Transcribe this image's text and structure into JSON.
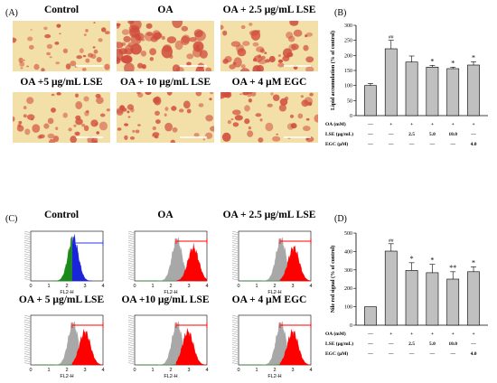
{
  "panels": {
    "A": {
      "label": "(A)",
      "images": [
        {
          "title": "Control"
        },
        {
          "title": "OA"
        },
        {
          "title": "OA + 2.5 μg/mL LSE"
        },
        {
          "title": "OA +5 μg/mL LSE"
        },
        {
          "title": "OA + 10 μg/mL LSE"
        },
        {
          "title": "OA + 4 μM EGC"
        }
      ]
    },
    "C": {
      "label": "(C)",
      "histograms": [
        {
          "title": "Control",
          "xlabel": "FL2-H",
          "fill": "green-blue"
        },
        {
          "title": "OA",
          "xlabel": "FL2-H",
          "fill": "red"
        },
        {
          "title": "OA + 2.5 μg/mL LSE",
          "xlabel": "FL2-H",
          "fill": "red"
        },
        {
          "title": "OA + 5 μg/mL LSE",
          "xlabel": "FL2-H",
          "fill": "red"
        },
        {
          "title": "OA +10 μg/mL LSE",
          "xlabel": "FL2-H",
          "fill": "red"
        },
        {
          "title": "OA + 4 μM EGC",
          "xlabel": "FL2-H",
          "fill": "red"
        }
      ],
      "x_ticks": [
        "0",
        "1",
        "2",
        "3",
        "4"
      ]
    }
  },
  "chart_data": [
    {
      "panel_label": "(B)",
      "type": "bar",
      "ylabel": "Lipid accumulation (% of control)",
      "ylim": [
        0,
        300
      ],
      "yticks": [
        0,
        50,
        100,
        150,
        200,
        250,
        300
      ],
      "values": [
        100,
        222,
        178,
        161,
        156,
        168
      ],
      "errors": [
        7,
        28,
        20,
        6,
        5,
        11
      ],
      "marks": [
        "",
        "##",
        "",
        "*",
        "*",
        "*"
      ],
      "rows": [
        {
          "label": "OA (mM)",
          "cells": [
            "—",
            "+",
            "+",
            "+",
            "+",
            "+"
          ]
        },
        {
          "label": "LSE (μg/mL)",
          "cells": [
            "—",
            "—",
            "2.5",
            "5.0",
            "10.0",
            "—"
          ]
        },
        {
          "label": "EGC (μM)",
          "cells": [
            "—",
            "—",
            "—",
            "—",
            "—",
            "4.0"
          ]
        }
      ],
      "bar_color": "#c0c0c0"
    },
    {
      "panel_label": "(D)",
      "type": "bar",
      "ylabel": "Nile red signal (% of control)",
      "ylim": [
        0,
        500
      ],
      "yticks": [
        0,
        100,
        200,
        300,
        400,
        500
      ],
      "values": [
        100,
        402,
        297,
        285,
        250,
        290
      ],
      "errors": [
        0,
        40,
        42,
        45,
        40,
        27
      ],
      "marks": [
        "",
        "##",
        "*",
        "*",
        "**",
        "*"
      ],
      "rows": [
        {
          "label": "OA (mM)",
          "cells": [
            "—",
            "+",
            "+",
            "+",
            "+",
            "+"
          ]
        },
        {
          "label": "LSE (μg/mL)",
          "cells": [
            "—",
            "—",
            "2.5",
            "5.0",
            "10.0",
            "—"
          ]
        },
        {
          "label": "EGC (μM)",
          "cells": [
            "—",
            "—",
            "—",
            "—",
            "—",
            "4.0"
          ]
        }
      ],
      "bar_color": "#c0c0c0"
    }
  ],
  "colors": {
    "micro_bg": "#f3dfa8",
    "micro_stain": "#cf4a3c",
    "histo_green": "#1a8a1a",
    "histo_blue": "#1a24d8",
    "histo_red": "#ff0000",
    "histo_gray": "#a8a8a8",
    "gate_blue": "#2a3ae8",
    "gate_red": "#ff0000"
  }
}
